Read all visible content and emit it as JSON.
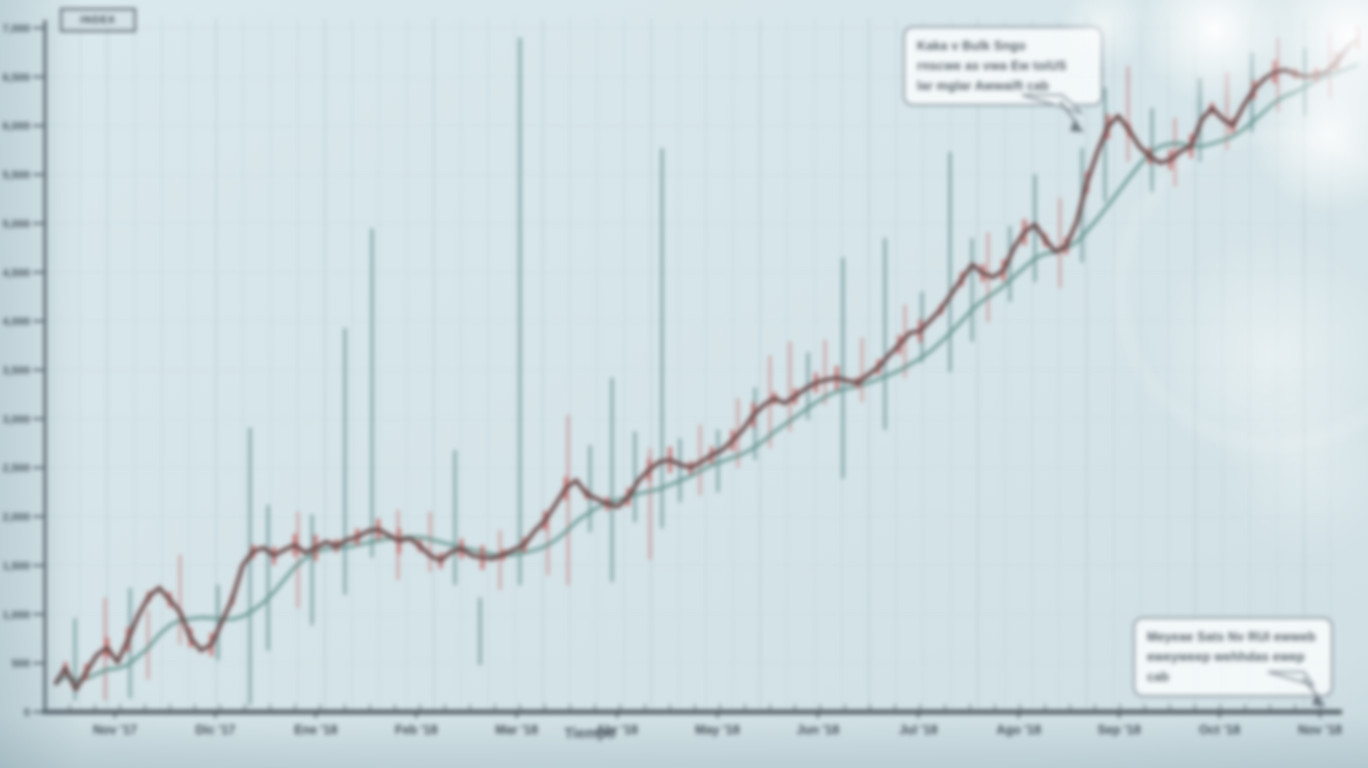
{
  "colors": {
    "background": "#d7e5e9",
    "grid": "#c6d9de",
    "grid_dark": "#b7ccd2",
    "axis": "#4c585f",
    "tick_text": "#3d474f",
    "price_line": "#3a3435",
    "candle_red": "#c2605e",
    "bar_red": "#c98b8b",
    "bar_teal": "#5d8a8c",
    "ma_teal": "#5f9189",
    "callout_border": "#8d99a3",
    "callout_bg": "#f4f9fa",
    "callout_text": "#566069",
    "bokeh": "#ffffff"
  },
  "legend": {
    "label": "INDEX"
  },
  "annotations": {
    "top": {
      "lines": [
        "Kaka v Bulk Sngo",
        "rnscwe as vwa Ew toiUS",
        "lar mglar Awwaift cab"
      ]
    },
    "bottom": {
      "lines": [
        "Meyeae Sats Nv RUI ewweb",
        "eweyweep wehhdas ewep cab"
      ]
    }
  },
  "chart_data": {
    "type": "line",
    "title": "",
    "xlabel": "Tiempo",
    "ylabel": "",
    "ylim": [
      0,
      7000
    ],
    "grid": true,
    "legend_position": "top-left",
    "x_tick_labels": [
      "Nov '17",
      "Dic '17",
      "Ene '18",
      "Feb '18",
      "Mar '18",
      "Abr '18",
      "May '18",
      "Jun '18",
      "Jul '18",
      "Ago '18",
      "Sep '18",
      "Oct '18",
      "Nov '18"
    ],
    "y_tick_labels": [
      "7,000",
      "6,500",
      "6,000",
      "5,500",
      "5,000",
      "4,500",
      "4,000",
      "3,500",
      "3,000",
      "2,500",
      "2,000",
      "1,500",
      "1,000",
      "500",
      "0"
    ],
    "series": [
      {
        "name": "price",
        "color": "#3a3435",
        "values": [
          280,
          450,
          230,
          410,
          580,
          660,
          510,
          740,
          990,
          1180,
          1270,
          1150,
          1020,
          760,
          630,
          690,
          920,
          1150,
          1500,
          1640,
          1680,
          1600,
          1660,
          1710,
          1630,
          1680,
          1740,
          1700,
          1760,
          1790,
          1850,
          1870,
          1810,
          1750,
          1780,
          1700,
          1600,
          1550,
          1640,
          1670,
          1600,
          1580,
          1570,
          1610,
          1660,
          1710,
          1850,
          1960,
          2120,
          2290,
          2370,
          2230,
          2180,
          2130,
          2100,
          2200,
          2370,
          2480,
          2560,
          2580,
          2530,
          2500,
          2560,
          2630,
          2680,
          2780,
          2890,
          3040,
          3140,
          3210,
          3160,
          3230,
          3310,
          3370,
          3400,
          3420,
          3390,
          3370,
          3450,
          3530,
          3650,
          3760,
          3880,
          3900,
          4010,
          4120,
          4280,
          4430,
          4580,
          4490,
          4450,
          4520,
          4750,
          4910,
          4990,
          4830,
          4710,
          4770,
          5010,
          5420,
          5730,
          5990,
          6100,
          5960,
          5790,
          5690,
          5620,
          5650,
          5740,
          5790,
          6060,
          6180,
          6070,
          6000,
          6200,
          6370,
          6480,
          6550,
          6570,
          6530,
          6500,
          6520,
          6550,
          6660,
          6800,
          6900
        ]
      },
      {
        "name": "moving-average",
        "color": "#5f9189",
        "derived": "trailing mean, window 8 of price"
      }
    ],
    "range_bars": [
      [
        75,
        960,
        120,
        "t"
      ],
      [
        105,
        1170,
        120,
        "r"
      ],
      [
        130,
        1270,
        140,
        "t"
      ],
      [
        148,
        1040,
        330,
        "r"
      ],
      [
        180,
        1610,
        690,
        "r"
      ],
      [
        218,
        1300,
        530,
        "t"
      ],
      [
        250,
        2910,
        70,
        "t"
      ],
      [
        268,
        2120,
        630,
        "t"
      ],
      [
        298,
        2050,
        1060,
        "r"
      ],
      [
        312,
        2020,
        890,
        "t"
      ],
      [
        345,
        3930,
        1200,
        "t"
      ],
      [
        372,
        4950,
        1580,
        "t"
      ],
      [
        398,
        2070,
        1350,
        "r"
      ],
      [
        430,
        2050,
        1430,
        "r"
      ],
      [
        455,
        2680,
        1300,
        "t"
      ],
      [
        480,
        1170,
        480,
        "t"
      ],
      [
        500,
        1860,
        1250,
        "r"
      ],
      [
        520,
        6900,
        1300,
        "t"
      ],
      [
        548,
        2020,
        1400,
        "r"
      ],
      [
        568,
        3040,
        1300,
        "r"
      ],
      [
        590,
        2730,
        1840,
        "t"
      ],
      [
        612,
        3420,
        1330,
        "t"
      ],
      [
        635,
        2870,
        1940,
        "t"
      ],
      [
        650,
        2700,
        1560,
        "r"
      ],
      [
        662,
        5770,
        1880,
        "t"
      ],
      [
        680,
        2800,
        2150,
        "t"
      ],
      [
        700,
        2940,
        2220,
        "r"
      ],
      [
        718,
        2890,
        2250,
        "t"
      ],
      [
        738,
        3210,
        2500,
        "r"
      ],
      [
        755,
        3320,
        2580,
        "t"
      ],
      [
        770,
        3650,
        2700,
        "r"
      ],
      [
        790,
        3790,
        2870,
        "r"
      ],
      [
        808,
        3680,
        2990,
        "t"
      ],
      [
        825,
        3810,
        3140,
        "r"
      ],
      [
        843,
        4650,
        2390,
        "t"
      ],
      [
        862,
        3830,
        3170,
        "r"
      ],
      [
        885,
        4850,
        2890,
        "t"
      ],
      [
        905,
        4170,
        3420,
        "r"
      ],
      [
        922,
        4300,
        3580,
        "t"
      ],
      [
        950,
        5730,
        3480,
        "t"
      ],
      [
        972,
        4850,
        3790,
        "t"
      ],
      [
        988,
        4910,
        3990,
        "r"
      ],
      [
        1010,
        4970,
        4200,
        "t"
      ],
      [
        1035,
        5500,
        4400,
        "t"
      ],
      [
        1060,
        5260,
        4340,
        "r"
      ],
      [
        1082,
        5770,
        4600,
        "t"
      ],
      [
        1105,
        6390,
        5220,
        "t"
      ],
      [
        1128,
        6610,
        5630,
        "r"
      ],
      [
        1152,
        6180,
        5320,
        "t"
      ],
      [
        1175,
        6080,
        5380,
        "r"
      ],
      [
        1200,
        6490,
        5630,
        "t"
      ],
      [
        1227,
        6550,
        5750,
        "r"
      ],
      [
        1252,
        6750,
        5930,
        "t"
      ],
      [
        1278,
        6900,
        6140,
        "r"
      ],
      [
        1305,
        6800,
        6100,
        "t"
      ],
      [
        1330,
        6960,
        6280,
        "r"
      ]
    ]
  }
}
